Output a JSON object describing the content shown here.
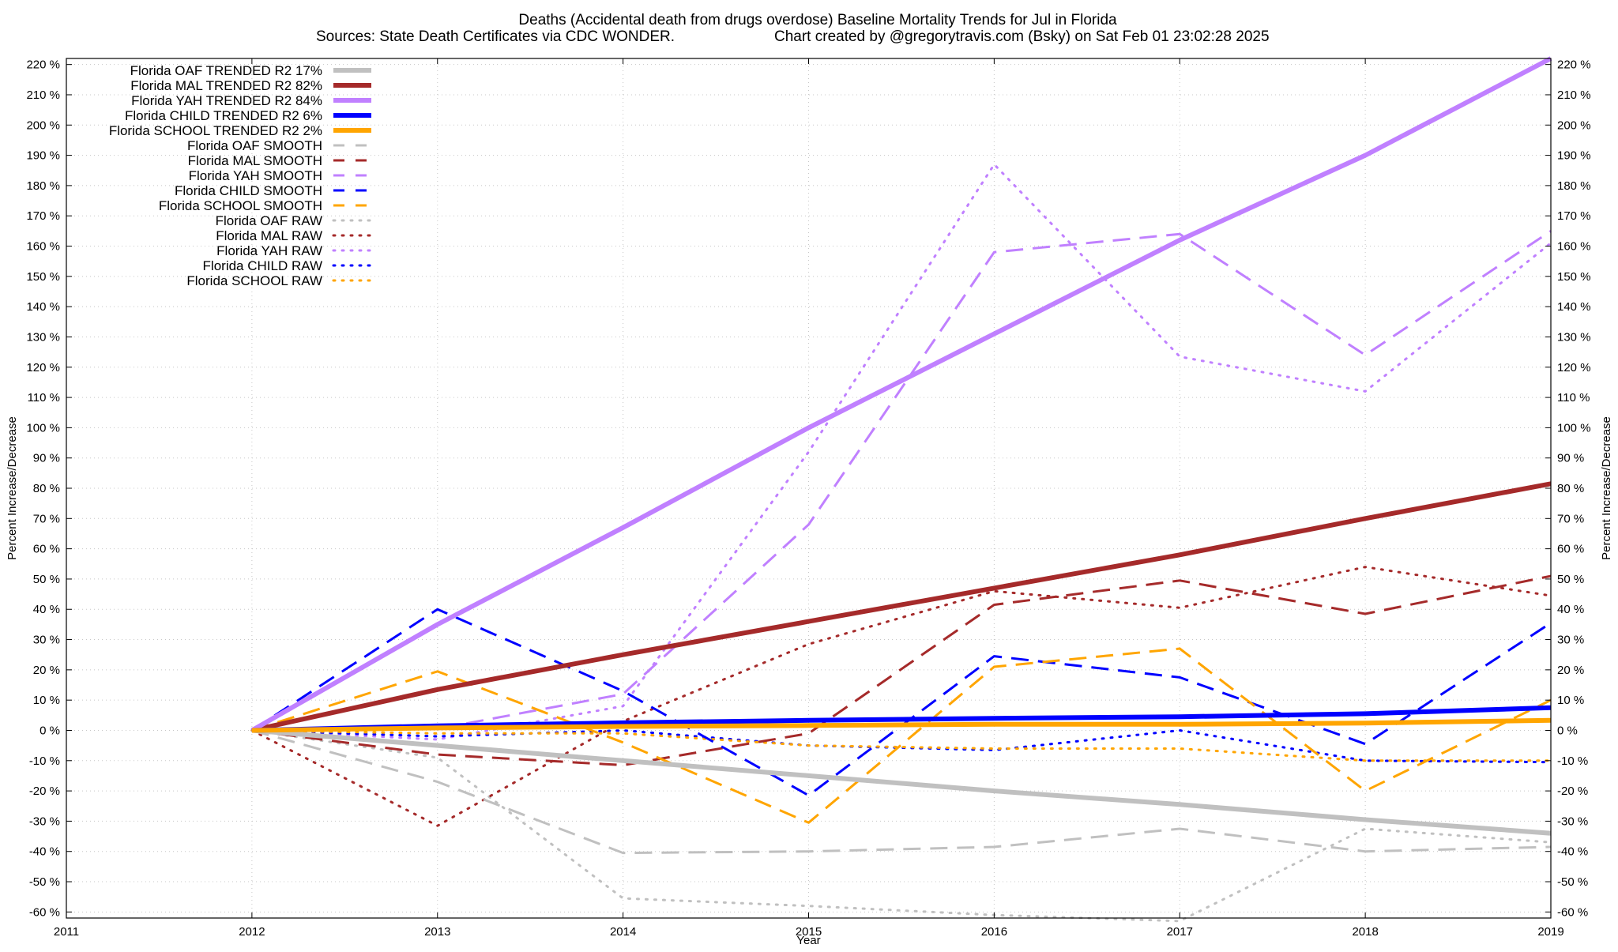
{
  "chart_data": {
    "type": "line",
    "title": "Deaths (Accidental death from drugs overdose)  Baseline Mortality Trends for Jul in Florida",
    "subtitle_left": "Sources: State Death Certificates via CDC WONDER.",
    "subtitle_right": "Chart created by @gregorytravis.com (Bsky) on Sat Feb 01 23:02:28 2025",
    "xlabel": "Year",
    "ylabel": "Percent Increase/Decrease",
    "xlim": [
      2011,
      2019
    ],
    "ylim": [
      -62,
      222
    ],
    "x_ticks": [
      2011,
      2012,
      2013,
      2014,
      2015,
      2016,
      2017,
      2018,
      2019
    ],
    "x_tick_labels": [
      "2011",
      "2012",
      "2013",
      "2014",
      "2015",
      "2016",
      "2017",
      "2018",
      "2019"
    ],
    "y_ticks": [
      -60,
      -50,
      -40,
      -30,
      -20,
      -10,
      0,
      10,
      20,
      30,
      40,
      50,
      60,
      70,
      80,
      90,
      100,
      110,
      120,
      130,
      140,
      150,
      160,
      170,
      180,
      190,
      200,
      210,
      220
    ],
    "y_tick_labels": [
      "-60 %",
      "-50 %",
      "-40 %",
      "-30 %",
      "-20 %",
      "-10 %",
      "0 %",
      "10 %",
      "20 %",
      "30 %",
      "40 %",
      "50 %",
      "60 %",
      "70 %",
      "80 %",
      "90 %",
      "100 %",
      "110 %",
      "120 %",
      "130 %",
      "140 %",
      "150 %",
      "160 %",
      "170 %",
      "180 %",
      "190 %",
      "200 %",
      "210 %",
      "220 %"
    ],
    "grid": true,
    "legend_position": "top-left",
    "series": [
      {
        "name": "Florida OAF TRENDED R2  17%",
        "style": "solid",
        "color": "#c0c0c0",
        "x": [
          2012,
          2013,
          2014,
          2015,
          2016,
          2017,
          2018,
          2019
        ],
        "values": [
          0,
          -5,
          -10,
          -15,
          -20,
          -24.5,
          -29.5,
          -34
        ]
      },
      {
        "name": "Florida MAL TRENDED R2  82%",
        "style": "solid",
        "color": "#a52a2a",
        "x": [
          2012,
          2013,
          2014,
          2015,
          2016,
          2017,
          2018,
          2019
        ],
        "values": [
          0,
          13.5,
          25,
          36,
          47,
          58,
          70,
          81.5
        ]
      },
      {
        "name": "Florida YAH TRENDED R2  84%",
        "style": "solid",
        "color": "#c080ff",
        "x": [
          2012,
          2013,
          2014,
          2015,
          2016,
          2017,
          2018,
          2019
        ],
        "values": [
          0,
          35,
          67,
          100,
          131,
          162,
          190,
          222
        ]
      },
      {
        "name": "Florida CHILD TRENDED R2   6%",
        "style": "solid",
        "color": "#0000ff",
        "x": [
          2012,
          2013,
          2014,
          2015,
          2016,
          2017,
          2018,
          2019
        ],
        "values": [
          0,
          1.5,
          2.5,
          3.3,
          4,
          4.5,
          5.5,
          7.5
        ]
      },
      {
        "name": "Florida SCHOOL TRENDED R2   2%",
        "style": "solid",
        "color": "#ffa500",
        "x": [
          2012,
          2013,
          2014,
          2015,
          2016,
          2017,
          2018,
          2019
        ],
        "values": [
          0,
          0.8,
          1.3,
          1.6,
          2,
          2,
          2.4,
          3.3
        ]
      },
      {
        "name": "Florida OAF SMOOTH",
        "style": "dashed",
        "color": "#c0c0c0",
        "x": [
          2012,
          2013,
          2014,
          2015,
          2016,
          2017,
          2018,
          2019
        ],
        "values": [
          0,
          -17,
          -40.5,
          -40,
          -38.5,
          -32.5,
          -40,
          -38.5
        ]
      },
      {
        "name": "Florida MAL SMOOTH",
        "style": "dashed",
        "color": "#a52a2a",
        "x": [
          2012,
          2013,
          2014,
          2015,
          2016,
          2017,
          2018,
          2019
        ],
        "values": [
          0,
          -8,
          -11.5,
          -1,
          41.5,
          49.5,
          38.5,
          51
        ]
      },
      {
        "name": "Florida YAH SMOOTH",
        "style": "dashed",
        "color": "#c080ff",
        "x": [
          2012,
          2013,
          2014,
          2015,
          2016,
          2017,
          2018,
          2019
        ],
        "values": [
          0,
          0.5,
          12,
          68,
          158,
          164,
          124,
          165
        ]
      },
      {
        "name": "Florida CHILD SMOOTH",
        "style": "dashed",
        "color": "#0000ff",
        "x": [
          2012,
          2013,
          2014,
          2015,
          2016,
          2017,
          2018,
          2019
        ],
        "values": [
          0,
          40,
          13,
          -21.5,
          24.5,
          17.5,
          -4.5,
          35.5
        ]
      },
      {
        "name": "Florida SCHOOL SMOOTH",
        "style": "dashed",
        "color": "#ffa500",
        "x": [
          2012,
          2013,
          2014,
          2015,
          2016,
          2017,
          2018,
          2019
        ],
        "values": [
          0,
          19.5,
          -4,
          -30.5,
          21,
          27,
          -20,
          10
        ]
      },
      {
        "name": "Florida OAF RAW",
        "style": "dotted",
        "color": "#c0c0c0",
        "x": [
          2012,
          2013,
          2014,
          2015,
          2016,
          2017,
          2018,
          2019
        ],
        "values": [
          0,
          -9,
          -55.5,
          -58,
          -61,
          -63,
          -32.5,
          -37
        ]
      },
      {
        "name": "Florida MAL RAW",
        "style": "dotted",
        "color": "#a52a2a",
        "x": [
          2012,
          2013,
          2014,
          2015,
          2016,
          2017,
          2018,
          2019
        ],
        "values": [
          0,
          -31.5,
          3,
          28.5,
          46,
          40.5,
          54,
          44.5
        ]
      },
      {
        "name": "Florida YAH RAW",
        "style": "dotted",
        "color": "#c080ff",
        "x": [
          2012,
          2013,
          2014,
          2015,
          2016,
          2017,
          2018,
          2019
        ],
        "values": [
          0,
          -3,
          8,
          92,
          187,
          123.5,
          112,
          161
        ]
      },
      {
        "name": "Florida CHILD RAW",
        "style": "dotted",
        "color": "#0000ff",
        "x": [
          2012,
          2013,
          2014,
          2015,
          2016,
          2017,
          2018,
          2019
        ],
        "values": [
          0,
          -2,
          0,
          -5,
          -6.5,
          0,
          -10,
          -10.5
        ]
      },
      {
        "name": "Florida SCHOOL RAW",
        "style": "dotted",
        "color": "#ffa500",
        "x": [
          2012,
          2013,
          2014,
          2015,
          2016,
          2017,
          2018,
          2019
        ],
        "values": [
          0,
          -1,
          -1,
          -5,
          -6,
          -6,
          -10,
          -10
        ]
      }
    ]
  }
}
